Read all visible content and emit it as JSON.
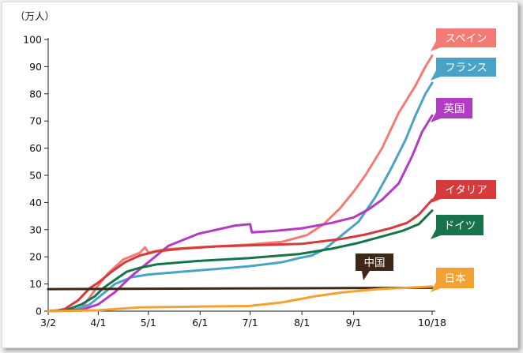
{
  "chart_data": {
    "type": "line",
    "unit_label": "（万人）",
    "ylim": [
      0,
      100
    ],
    "yticks": [
      0,
      10,
      20,
      30,
      40,
      50,
      60,
      70,
      80,
      90,
      100
    ],
    "x_tick_labels": [
      "3/2",
      "4/1",
      "5/1",
      "6/1",
      "7/1",
      "8/1",
      "9/1",
      "10/18"
    ],
    "x_tick_days": [
      0,
      30,
      60,
      91,
      121,
      152,
      183,
      230
    ],
    "xlim_days": [
      0,
      230
    ],
    "grid": false,
    "series": [
      {
        "name": "スペイン",
        "color": "#f47b73",
        "points": [
          [
            0,
            0
          ],
          [
            12,
            0.2
          ],
          [
            20,
            1.2
          ],
          [
            26,
            6
          ],
          [
            30,
            9.5
          ],
          [
            36,
            14
          ],
          [
            45,
            19
          ],
          [
            55,
            21.5
          ],
          [
            58,
            23.5
          ],
          [
            60,
            21.5
          ],
          [
            70,
            22.8
          ],
          [
            90,
            23.5
          ],
          [
            120,
            24.5
          ],
          [
            140,
            25.5
          ],
          [
            155,
            28
          ],
          [
            165,
            32
          ],
          [
            175,
            38
          ],
          [
            183,
            44
          ],
          [
            190,
            50
          ],
          [
            200,
            60
          ],
          [
            210,
            73
          ],
          [
            220,
            83
          ],
          [
            226,
            90
          ],
          [
            230,
            94
          ]
        ]
      },
      {
        "name": "フランス",
        "color": "#4aa3c7",
        "points": [
          [
            0,
            0
          ],
          [
            15,
            0.3
          ],
          [
            25,
            2.5
          ],
          [
            32,
            6
          ],
          [
            40,
            10
          ],
          [
            50,
            12.5
          ],
          [
            60,
            13.5
          ],
          [
            80,
            14.5
          ],
          [
            100,
            15.5
          ],
          [
            120,
            16.5
          ],
          [
            140,
            18
          ],
          [
            150,
            19.5
          ],
          [
            158,
            20.5
          ],
          [
            166,
            23
          ],
          [
            176,
            28
          ],
          [
            186,
            33
          ],
          [
            196,
            42
          ],
          [
            205,
            52
          ],
          [
            214,
            63
          ],
          [
            220,
            72
          ],
          [
            226,
            80
          ],
          [
            230,
            84
          ]
        ]
      },
      {
        "name": "英国",
        "color": "#b23ac4",
        "points": [
          [
            0,
            0
          ],
          [
            20,
            0.5
          ],
          [
            30,
            2.5
          ],
          [
            40,
            7
          ],
          [
            50,
            13
          ],
          [
            60,
            18
          ],
          [
            72,
            24
          ],
          [
            90,
            28.5
          ],
          [
            112,
            31.5
          ],
          [
            121,
            32
          ],
          [
            122,
            29
          ],
          [
            135,
            29.5
          ],
          [
            152,
            30.5
          ],
          [
            170,
            32.5
          ],
          [
            183,
            34.5
          ],
          [
            192,
            37.5
          ],
          [
            200,
            41
          ],
          [
            210,
            47
          ],
          [
            218,
            57
          ],
          [
            224,
            66
          ],
          [
            230,
            72
          ]
        ]
      },
      {
        "name": "イタリア",
        "color": "#d63a3a",
        "points": [
          [
            0,
            0
          ],
          [
            6,
            0.3
          ],
          [
            10,
            0.8
          ],
          [
            18,
            4
          ],
          [
            25,
            8.5
          ],
          [
            30,
            10.5
          ],
          [
            38,
            14.5
          ],
          [
            46,
            18
          ],
          [
            55,
            20.5
          ],
          [
            65,
            22
          ],
          [
            80,
            23
          ],
          [
            100,
            23.8
          ],
          [
            120,
            24.2
          ],
          [
            152,
            24.8
          ],
          [
            175,
            26.5
          ],
          [
            190,
            28.2
          ],
          [
            205,
            30.5
          ],
          [
            215,
            32.5
          ],
          [
            222,
            35.5
          ],
          [
            230,
            41
          ]
        ]
      },
      {
        "name": "ドイツ",
        "color": "#17744a",
        "points": [
          [
            0,
            0
          ],
          [
            10,
            0.2
          ],
          [
            20,
            2.5
          ],
          [
            28,
            5.5
          ],
          [
            33,
            8.5
          ],
          [
            40,
            11.5
          ],
          [
            47,
            14.5
          ],
          [
            55,
            16
          ],
          [
            65,
            17.2
          ],
          [
            90,
            18.5
          ],
          [
            120,
            19.5
          ],
          [
            150,
            21
          ],
          [
            170,
            23
          ],
          [
            185,
            25
          ],
          [
            200,
            27.5
          ],
          [
            212,
            29.5
          ],
          [
            222,
            32
          ],
          [
            230,
            37
          ]
        ]
      },
      {
        "name": "中国",
        "color": "#3f2716",
        "points": [
          [
            0,
            8.1
          ],
          [
            230,
            8.6
          ]
        ]
      },
      {
        "name": "日本",
        "color": "#f3a132",
        "points": [
          [
            0,
            0
          ],
          [
            30,
            0.3
          ],
          [
            45,
            1
          ],
          [
            55,
            1.4
          ],
          [
            90,
            1.7
          ],
          [
            120,
            1.9
          ],
          [
            140,
            3.2
          ],
          [
            160,
            5.5
          ],
          [
            175,
            6.8
          ],
          [
            185,
            7.4
          ],
          [
            200,
            8.2
          ],
          [
            215,
            8.6
          ],
          [
            230,
            9.1
          ]
        ]
      }
    ]
  }
}
